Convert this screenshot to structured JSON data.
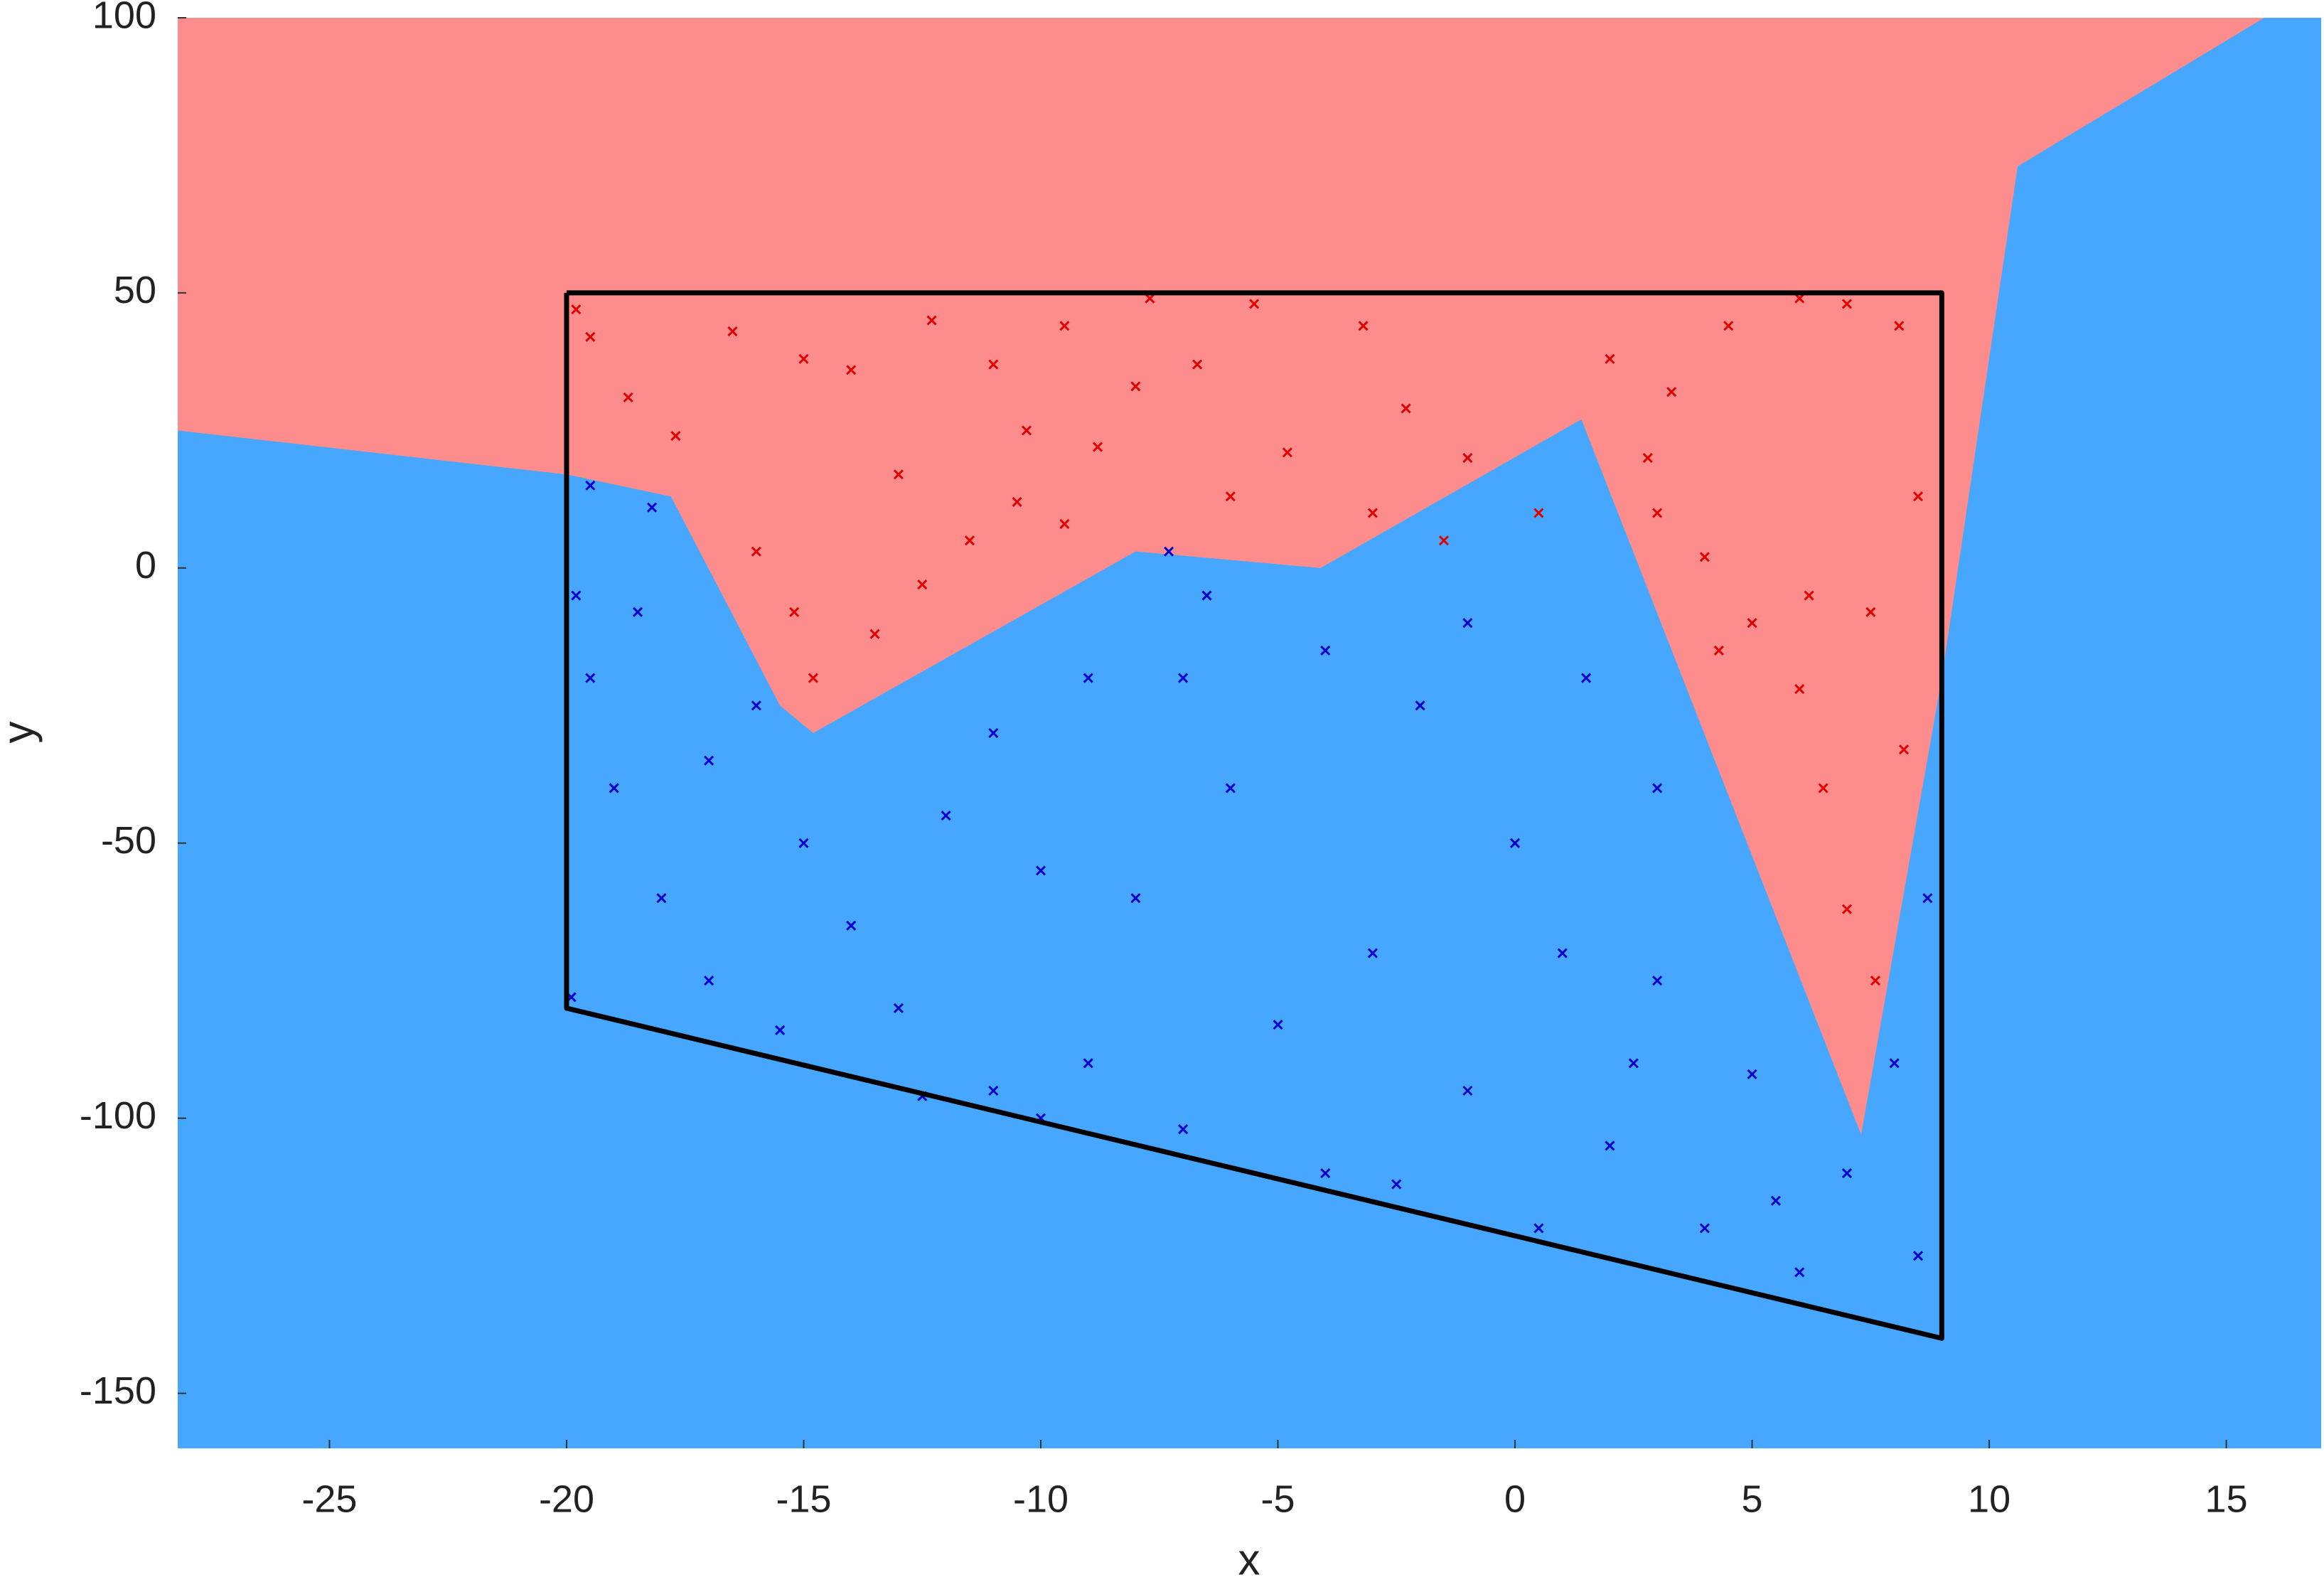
{
  "chart_data": {
    "type": "scatter",
    "xlabel": "x",
    "ylabel": "y",
    "xlim": [
      -28.2,
      17
    ],
    "ylim": [
      -160,
      100
    ],
    "xticks": [
      -25,
      -20,
      -15,
      -10,
      -5,
      0,
      5,
      10,
      15
    ],
    "yticks": [
      -150,
      -100,
      -50,
      0,
      50,
      100
    ],
    "boundary": {
      "x": [
        -28.2,
        -20,
        -17.8,
        -15.5,
        -14.8,
        -8,
        -4.1,
        1.4,
        7.3,
        9,
        10.6,
        15.8
      ],
      "y": [
        25,
        17,
        13,
        -25,
        -30,
        3,
        0,
        27,
        -103,
        -20,
        73,
        100
      ],
      "color_above": "#fd8d8d",
      "color_below": "#47a6fd"
    },
    "polygon": {
      "x": [
        -20,
        9,
        9,
        -20,
        -20
      ],
      "y": [
        50,
        50,
        -140,
        -80,
        50
      ],
      "color": "#000000"
    },
    "series": [
      {
        "color": "#e00000",
        "x": [
          -19.8,
          -19.5,
          -18.7,
          -17.7,
          -16.5,
          -15,
          -14,
          -13,
          -12.3,
          -11,
          -10.3,
          -9.5,
          -8.8,
          -7.7,
          -6.7,
          -5.5,
          -4.8,
          -3.2,
          -2.3,
          -1,
          0.5,
          2,
          3.3,
          4.5,
          6,
          7,
          8.1,
          8.5,
          -14.8,
          -13.5,
          -12.5,
          -11.5,
          -10.5,
          -9.5,
          -16,
          -15.2,
          -6,
          -3,
          -1.5,
          3,
          4,
          5,
          6,
          6.5,
          7,
          7.6,
          8.2,
          7.5,
          6.2,
          4.3,
          2.8,
          -8
        ],
        "y": [
          47,
          42,
          31,
          24,
          43,
          38,
          36,
          17,
          45,
          37,
          25,
          44,
          22,
          49,
          37,
          48,
          21,
          44,
          29,
          20,
          10,
          38,
          32,
          44,
          49,
          48,
          44,
          13,
          -20,
          -12,
          -3,
          5,
          12,
          8,
          3,
          -8,
          13,
          10,
          5,
          10,
          2,
          -10,
          -22,
          -40,
          -62,
          -75,
          -33,
          -8,
          -5,
          -15,
          20,
          33
        ]
      },
      {
        "color": "#0000cc",
        "x": [
          -19.8,
          -19.5,
          -19,
          -18.5,
          -18,
          -17,
          -16,
          -15,
          -14,
          -13,
          -12,
          -11,
          -10,
          -9,
          -8,
          -7,
          -6,
          -5,
          -4,
          -3,
          -2,
          -1,
          0,
          1,
          2,
          3,
          4,
          5,
          6,
          7,
          8.5,
          8.7,
          3,
          1.5,
          -1,
          -4,
          -6.5,
          -9,
          -11,
          -12.5,
          -15.5,
          -17,
          -19.9,
          -10,
          -7,
          -2.5,
          0.5,
          2.5,
          5.5,
          8,
          -19.5,
          -18.2,
          -7.3
        ],
        "y": [
          -5,
          -20,
          -40,
          -8,
          -60,
          -35,
          -25,
          -50,
          -65,
          -80,
          -45,
          -30,
          -55,
          -90,
          -60,
          -20,
          -40,
          -83,
          -110,
          -70,
          -25,
          -95,
          -50,
          -70,
          -105,
          -75,
          -120,
          -92,
          -128,
          -110,
          -125,
          -60,
          -40,
          -20,
          -10,
          -15,
          -5,
          -20,
          -95,
          -96,
          -84,
          -75,
          -78,
          -100,
          -102,
          -112,
          -120,
          -90,
          -115,
          -90,
          15,
          11,
          3
        ]
      }
    ]
  }
}
